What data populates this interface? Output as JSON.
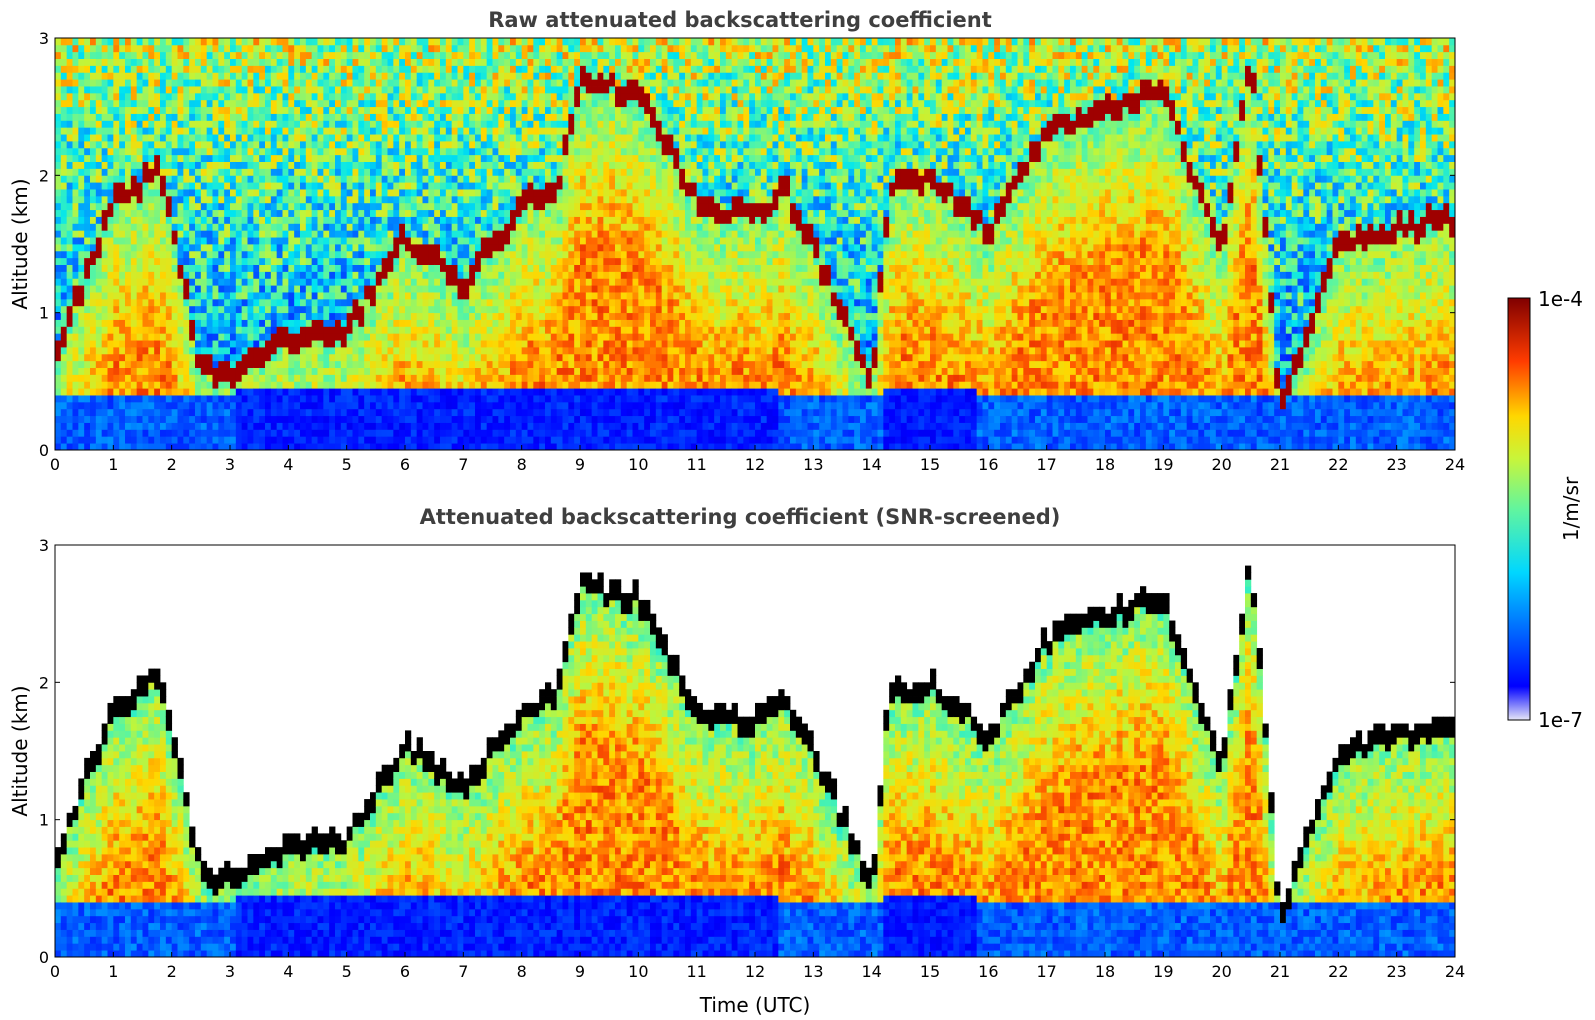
{
  "chart_data": [
    {
      "type": "heatmap",
      "title": "Raw attenuated backscattering coefficient",
      "xlabel": "",
      "ylabel": "Altitude (km)",
      "xlim": [
        0,
        24
      ],
      "ylim": [
        0,
        3
      ],
      "xticks": [
        "0",
        "1",
        "2",
        "3",
        "4",
        "5",
        "6",
        "7",
        "8",
        "9",
        "10",
        "11",
        "12",
        "13",
        "14",
        "15",
        "16",
        "17",
        "18",
        "19",
        "20",
        "21",
        "22",
        "23",
        "24"
      ],
      "yticks": [
        "0",
        "1",
        "2",
        "3"
      ],
      "screened": false,
      "colormap": "jet",
      "layer_top_km": [
        [
          0,
          0.7
        ],
        [
          1,
          1.8
        ],
        [
          1.8,
          2.05
        ],
        [
          2.5,
          0.6
        ],
        [
          3,
          0.55
        ],
        [
          4,
          0.8
        ],
        [
          5,
          0.85
        ],
        [
          6,
          1.55
        ],
        [
          7,
          1.2
        ],
        [
          8,
          1.8
        ],
        [
          8.6,
          1.9
        ],
        [
          9,
          2.7
        ],
        [
          10,
          2.6
        ],
        [
          11,
          1.8
        ],
        [
          12,
          1.7
        ],
        [
          12.5,
          1.9
        ],
        [
          13,
          1.5
        ],
        [
          14,
          0.5
        ],
        [
          14.3,
          1.9
        ],
        [
          15,
          2.0
        ],
        [
          16,
          1.6
        ],
        [
          17,
          2.3
        ],
        [
          18,
          2.5
        ],
        [
          19,
          2.6
        ],
        [
          20,
          1.4
        ],
        [
          20.5,
          2.9
        ],
        [
          21,
          0.3
        ],
        [
          22,
          1.5
        ],
        [
          23,
          1.6
        ],
        [
          24,
          1.7
        ]
      ]
    },
    {
      "type": "heatmap",
      "title": "Attenuated backscattering coefficient (SNR-screened)",
      "xlabel": "Time (UTC)",
      "ylabel": "Altitude (km)",
      "xlim": [
        0,
        24
      ],
      "ylim": [
        0,
        3
      ],
      "xticks": [
        "0",
        "1",
        "2",
        "3",
        "4",
        "5",
        "6",
        "7",
        "8",
        "9",
        "10",
        "11",
        "12",
        "13",
        "14",
        "15",
        "16",
        "17",
        "18",
        "19",
        "20",
        "21",
        "22",
        "23",
        "24"
      ],
      "yticks": [
        "0",
        "1",
        "2",
        "3"
      ],
      "screened": true,
      "colormap": "jet"
    }
  ],
  "colorbar": {
    "label": "1/m/sr",
    "max_label": "1e-4",
    "min_label": "1e-7"
  }
}
